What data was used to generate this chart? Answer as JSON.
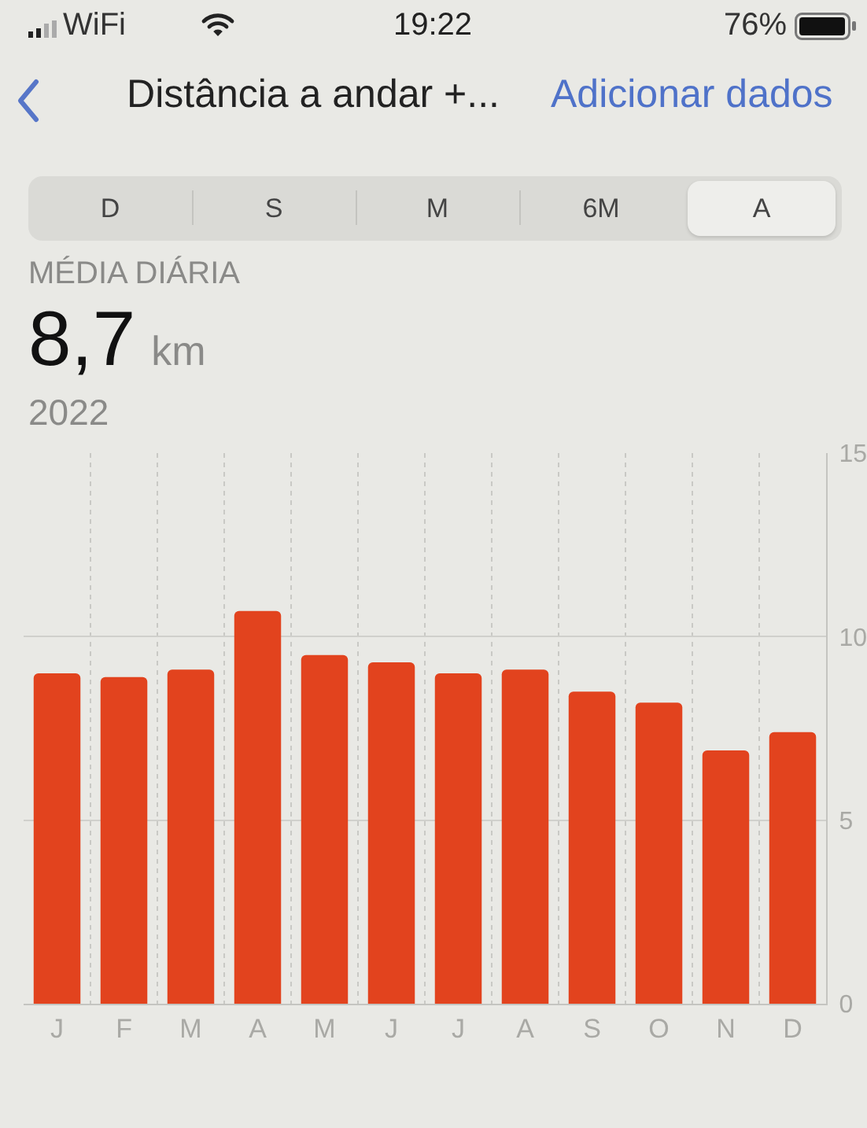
{
  "chart_data": {
    "type": "bar",
    "title": "Distância a andar +...",
    "subtitle": "MÉDIA DIÁRIA",
    "annotations": [
      "8,7 km",
      "2022",
      "Adicionar dados",
      "D",
      "S",
      "M",
      "6M",
      "A",
      "19:22",
      "76%",
      "WiFi"
    ],
    "categories": [
      "J",
      "F",
      "M",
      "A",
      "M",
      "J",
      "J",
      "A",
      "S",
      "O",
      "N",
      "D"
    ],
    "values": [
      9.0,
      8.9,
      9.1,
      10.7,
      9.5,
      9.3,
      9.0,
      9.1,
      8.5,
      8.2,
      6.9,
      7.4
    ],
    "color": "#e2431e",
    "ylim": [
      0,
      15
    ],
    "yticks": [
      0,
      5,
      10,
      15
    ],
    "grid": true
  }
}
